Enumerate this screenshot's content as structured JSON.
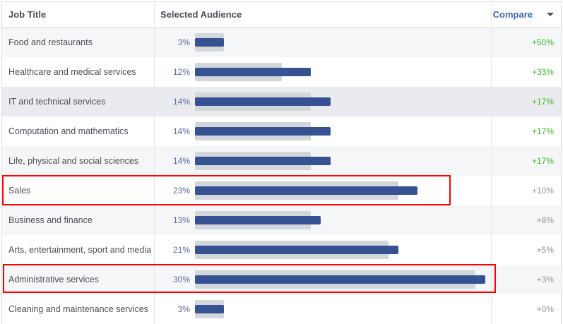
{
  "header": {
    "job_title": "Job Title",
    "selected_audience": "Selected Audience",
    "compare": "Compare"
  },
  "colors": {
    "bar": "#365292",
    "baseline": "#d3d6db",
    "positive": "#42b72a",
    "neutral": "#90949c",
    "highlight": "#ff0000"
  },
  "rows": [
    {
      "title": "Food and restaurants",
      "pct": "3%",
      "value": 3,
      "baseline": 2,
      "change": "+50%",
      "positive": true
    },
    {
      "title": "Healthcare and medical services",
      "pct": "12%",
      "value": 12,
      "baseline": 9,
      "change": "+33%",
      "positive": true
    },
    {
      "title": "IT and technical services",
      "pct": "14%",
      "value": 14,
      "baseline": 12,
      "change": "+17%",
      "positive": true
    },
    {
      "title": "Computation and mathematics",
      "pct": "14%",
      "value": 14,
      "baseline": 12,
      "change": "+17%",
      "positive": true
    },
    {
      "title": "Life, physical and social sciences",
      "pct": "14%",
      "value": 14,
      "baseline": 12,
      "change": "+17%",
      "positive": true
    },
    {
      "title": "Sales",
      "pct": "23%",
      "value": 23,
      "baseline": 21,
      "change": "+10%",
      "positive": false
    },
    {
      "title": "Business and finance",
      "pct": "13%",
      "value": 13,
      "baseline": 12,
      "change": "+8%",
      "positive": false
    },
    {
      "title": "Arts, entertainment, sport and media",
      "pct": "21%",
      "value": 21,
      "baseline": 20,
      "change": "+5%",
      "positive": false
    },
    {
      "title": "Administrative services",
      "pct": "30%",
      "value": 30,
      "baseline": 29,
      "change": "+3%",
      "positive": false
    },
    {
      "title": "Cleaning and maintenance services",
      "pct": "3%",
      "value": 3,
      "baseline": 3,
      "change": "+0%",
      "positive": false
    }
  ]
}
